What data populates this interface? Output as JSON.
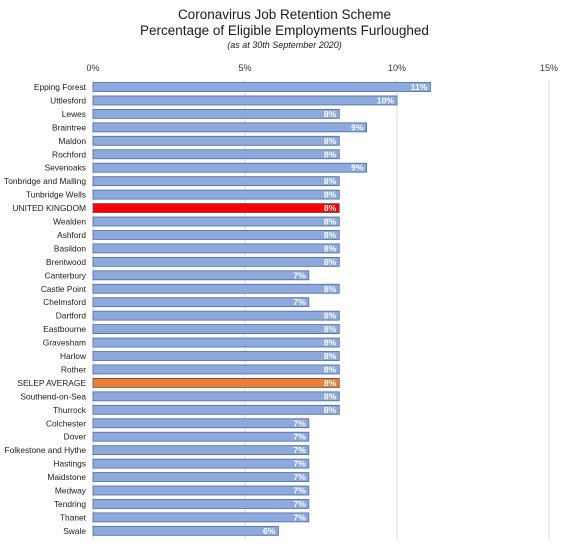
{
  "chart_data": {
    "type": "bar",
    "orientation": "horizontal",
    "title": "Coronavirus Job Retention Scheme",
    "subtitle": "Percentage of Eligible Employments Furloughed",
    "note": "(as at 30th September 2020)",
    "xlim": [
      0,
      15
    ],
    "xticks": [
      0,
      5,
      10,
      15
    ],
    "tick_labels": [
      "0%",
      "5%",
      "10%",
      "15%"
    ],
    "grid": true,
    "colors": {
      "default": "#8ea9db",
      "border": "#4a6aa5",
      "highlight_uk": "#ff0000",
      "highlight_avg": "#ed7d31",
      "grid": "#d9d9d9"
    },
    "categories": [
      "Epping Forest",
      "Uttlesford",
      "Lewes",
      "Braintree",
      "Maldon",
      "Rochford",
      "Sevenoaks",
      "Tonbridge and Malling",
      "Tunbridge Wells",
      "UNITED KINGDOM",
      "Wealden",
      "Ashford",
      "Basildon",
      "Brentwood",
      "Canterbury",
      "Castle Point",
      "Chelmsford",
      "Dartford",
      "Eastbourne",
      "Gravesham",
      "Harlow",
      "Rother",
      "SELEP AVERAGE",
      "Southend-on-Sea",
      "Thurrock",
      "Colchester",
      "Dover",
      "Folkestone and Hythe",
      "Hastings",
      "Maidstone",
      "Medway",
      "Tendring",
      "Thanet",
      "Swale"
    ],
    "values": [
      11.1,
      10.0,
      8.1,
      9.0,
      8.1,
      8.1,
      9.0,
      8.1,
      8.1,
      8.1,
      8.1,
      8.1,
      8.1,
      8.1,
      7.1,
      8.1,
      7.1,
      8.1,
      8.1,
      8.1,
      8.1,
      8.1,
      8.1,
      8.1,
      8.1,
      7.1,
      7.1,
      7.1,
      7.1,
      7.1,
      7.1,
      7.1,
      7.1,
      6.1
    ],
    "data_labels": [
      "11%",
      "10%",
      "8%",
      "9%",
      "8%",
      "8%",
      "9%",
      "8%",
      "8%",
      "8%",
      "8%",
      "8%",
      "8%",
      "8%",
      "7%",
      "8%",
      "7%",
      "8%",
      "8%",
      "8%",
      "8%",
      "8%",
      "8%",
      "8%",
      "8%",
      "7%",
      "7%",
      "7%",
      "7%",
      "7%",
      "7%",
      "7%",
      "7%",
      "6%"
    ],
    "highlight": {
      "UNITED KINGDOM": "highlight_uk",
      "SELEP AVERAGE": "highlight_avg"
    }
  }
}
